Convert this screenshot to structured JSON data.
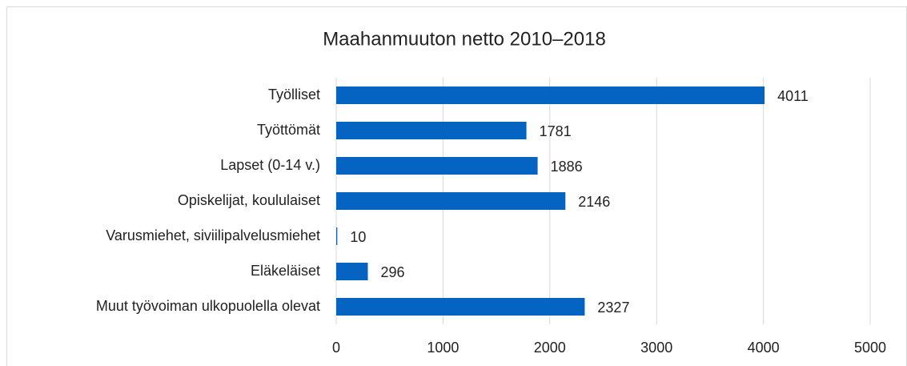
{
  "chart_data": {
    "type": "bar",
    "orientation": "horizontal",
    "title": "Maahanmuuton netto 2010–2018",
    "categories": [
      "Työlliset",
      "Työttömät",
      "Lapset (0-14 v.)",
      "Opiskelijat, koululaiset",
      "Varusmiehet, siviilipalvelusmiehet",
      "Eläkeläiset",
      "Muut työvoiman ulkopuolella olevat"
    ],
    "values": [
      4011,
      1781,
      1886,
      2146,
      10,
      296,
      2327
    ],
    "color": "#0563c1",
    "xlim": [
      0,
      5000
    ],
    "xticks": [
      0,
      1000,
      2000,
      3000,
      4000,
      5000
    ],
    "grid": true,
    "data_labels": true
  }
}
